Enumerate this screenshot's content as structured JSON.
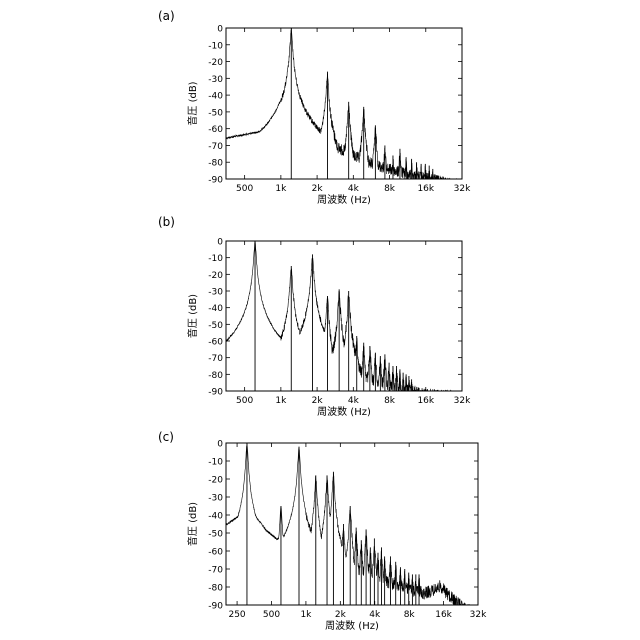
{
  "chart_data": [
    {
      "type": "line",
      "panel_label": "(a)",
      "xlabel": "周波数 (Hz)",
      "ylabel": "音圧 (dB)",
      "xscale": "log",
      "xlim": [
        350,
        32000
      ],
      "ylim": [
        -90,
        0
      ],
      "x_ticks": [
        500,
        1000,
        2000,
        4000,
        8000,
        16000,
        32000
      ],
      "x_tick_labels": [
        "500",
        "1k",
        "2k",
        "4k",
        "8k",
        "16k",
        "32k"
      ],
      "y_ticks": [
        0,
        -10,
        -20,
        -30,
        -40,
        -50,
        -60,
        -70,
        -80,
        -90
      ],
      "grid": false,
      "series": [
        {
          "baseline": [
            [
              350,
              -65
            ],
            [
              700,
              -61
            ],
            [
              900,
              -54
            ],
            [
              1050,
              -42
            ],
            [
              1180,
              -20
            ],
            [
              1230,
              -34
            ],
            [
              1400,
              -60
            ],
            [
              1800,
              -74
            ],
            [
              2200,
              -82
            ],
            [
              2500,
              -75
            ],
            [
              2800,
              -74
            ],
            [
              3500,
              -78
            ],
            [
              5000,
              -82
            ],
            [
              7000,
              -85
            ],
            [
              10000,
              -87
            ],
            [
              14000,
              -88
            ],
            [
              20000,
              -89
            ],
            [
              32000,
              -90
            ]
          ],
          "peaks": [
            {
              "x": 1220,
              "y": 0
            },
            {
              "x": 2440,
              "y": -26
            },
            {
              "x": 3660,
              "y": -44
            },
            {
              "x": 4880,
              "y": -47
            },
            {
              "x": 6100,
              "y": -58
            },
            {
              "x": 7320,
              "y": -70
            },
            {
              "x": 8540,
              "y": -76
            },
            {
              "x": 9760,
              "y": -72
            },
            {
              "x": 10980,
              "y": -77
            },
            {
              "x": 12200,
              "y": -78
            },
            {
              "x": 13420,
              "y": -80
            },
            {
              "x": 14640,
              "y": -81
            },
            {
              "x": 15860,
              "y": -81
            },
            {
              "x": 17080,
              "y": -82
            },
            {
              "x": 18300,
              "y": -84
            }
          ]
        }
      ]
    },
    {
      "type": "line",
      "panel_label": "(b)",
      "xlabel": "周波数 (Hz)",
      "ylabel": "音圧 (dB)",
      "xscale": "log",
      "xlim": [
        350,
        32000
      ],
      "ylim": [
        -90,
        0
      ],
      "x_ticks": [
        500,
        1000,
        2000,
        4000,
        8000,
        16000,
        32000
      ],
      "x_tick_labels": [
        "500",
        "1k",
        "2k",
        "4k",
        "8k",
        "16k",
        "32k"
      ],
      "y_ticks": [
        0,
        -10,
        -20,
        -30,
        -40,
        -50,
        -60,
        -70,
        -80,
        -90
      ],
      "grid": false,
      "series": [
        {
          "baseline": [
            [
              350,
              -64
            ],
            [
              500,
              -58
            ],
            [
              560,
              -50
            ],
            [
              610,
              -30
            ],
            [
              660,
              -48
            ],
            [
              760,
              -62
            ],
            [
              900,
              -78
            ],
            [
              1000,
              -86
            ],
            [
              1100,
              -66
            ],
            [
              1220,
              -45
            ],
            [
              1350,
              -64
            ],
            [
              1550,
              -62
            ],
            [
              1750,
              -56
            ],
            [
              1900,
              -60
            ],
            [
              2200,
              -66
            ],
            [
              2600,
              -66
            ],
            [
              3000,
              -72
            ],
            [
              3600,
              -75
            ],
            [
              4500,
              -77
            ],
            [
              6000,
              -80
            ],
            [
              8000,
              -83
            ],
            [
              11000,
              -85
            ],
            [
              15000,
              -88
            ],
            [
              20000,
              -89
            ],
            [
              32000,
              -90
            ]
          ],
          "peaks": [
            {
              "x": 610,
              "y": 0
            },
            {
              "x": 1220,
              "y": -15
            },
            {
              "x": 1830,
              "y": -8
            },
            {
              "x": 2440,
              "y": -33
            },
            {
              "x": 3050,
              "y": -29
            },
            {
              "x": 3660,
              "y": -30
            },
            {
              "x": 4270,
              "y": -57
            },
            {
              "x": 4880,
              "y": -61
            },
            {
              "x": 5490,
              "y": -63
            },
            {
              "x": 6100,
              "y": -67
            },
            {
              "x": 6710,
              "y": -69
            },
            {
              "x": 7320,
              "y": -68
            },
            {
              "x": 7930,
              "y": -73
            },
            {
              "x": 8540,
              "y": -75
            },
            {
              "x": 9150,
              "y": -75
            },
            {
              "x": 9760,
              "y": -77
            },
            {
              "x": 10370,
              "y": -79
            },
            {
              "x": 10980,
              "y": -80
            },
            {
              "x": 11590,
              "y": -81
            },
            {
              "x": 12200,
              "y": -83
            }
          ]
        }
      ]
    },
    {
      "type": "line",
      "panel_label": "(c)",
      "xlabel": "周波数 (Hz)",
      "ylabel": "音圧 (dB)",
      "xscale": "log",
      "xlim": [
        200,
        32000
      ],
      "ylim": [
        -90,
        0
      ],
      "x_ticks": [
        250,
        500,
        1000,
        2000,
        4000,
        8000,
        16000,
        32000
      ],
      "x_tick_labels": [
        "250",
        "500",
        "1k",
        "2k",
        "4k",
        "8k",
        "16k",
        "32k"
      ],
      "y_ticks": [
        0,
        -10,
        -20,
        -30,
        -40,
        -50,
        -60,
        -70,
        -80,
        -90
      ],
      "grid": false,
      "series": [
        {
          "baseline": [
            [
              200,
              -45
            ],
            [
              260,
              -40
            ],
            [
              300,
              -18
            ],
            [
              345,
              -38
            ],
            [
              450,
              -48
            ],
            [
              560,
              -53
            ],
            [
              620,
              -50
            ],
            [
              700,
              -54
            ],
            [
              790,
              -46
            ],
            [
              870,
              -18
            ],
            [
              960,
              -50
            ],
            [
              1200,
              -58
            ],
            [
              1500,
              -56
            ],
            [
              1800,
              -58
            ],
            [
              2200,
              -62
            ],
            [
              2800,
              -67
            ],
            [
              3500,
              -70
            ],
            [
              4500,
              -73
            ],
            [
              6000,
              -75
            ],
            [
              8000,
              -78
            ],
            [
              11000,
              -80
            ],
            [
              13500,
              -78
            ],
            [
              15000,
              -76
            ],
            [
              17000,
              -80
            ],
            [
              20000,
              -84
            ],
            [
              24000,
              -88
            ],
            [
              28000,
              -90
            ],
            [
              32000,
              -90
            ]
          ],
          "peaks": [
            {
              "x": 305,
              "y": 0
            },
            {
              "x": 605,
              "y": -35
            },
            {
              "x": 870,
              "y": -2
            },
            {
              "x": 1220,
              "y": -18
            },
            {
              "x": 1530,
              "y": -18
            },
            {
              "x": 1740,
              "y": -16
            },
            {
              "x": 2130,
              "y": -45
            },
            {
              "x": 2440,
              "y": -35
            },
            {
              "x": 2750,
              "y": -47
            },
            {
              "x": 3050,
              "y": -54
            },
            {
              "x": 3360,
              "y": -48
            },
            {
              "x": 3660,
              "y": -58
            },
            {
              "x": 3970,
              "y": -53
            },
            {
              "x": 4270,
              "y": -61
            },
            {
              "x": 4580,
              "y": -58
            },
            {
              "x": 4880,
              "y": -63
            },
            {
              "x": 5490,
              "y": -63
            },
            {
              "x": 6100,
              "y": -66
            },
            {
              "x": 6710,
              "y": -69
            },
            {
              "x": 7320,
              "y": -70
            },
            {
              "x": 7930,
              "y": -72
            },
            {
              "x": 8540,
              "y": -73
            },
            {
              "x": 9150,
              "y": -73
            },
            {
              "x": 9760,
              "y": -73
            }
          ]
        }
      ]
    }
  ]
}
